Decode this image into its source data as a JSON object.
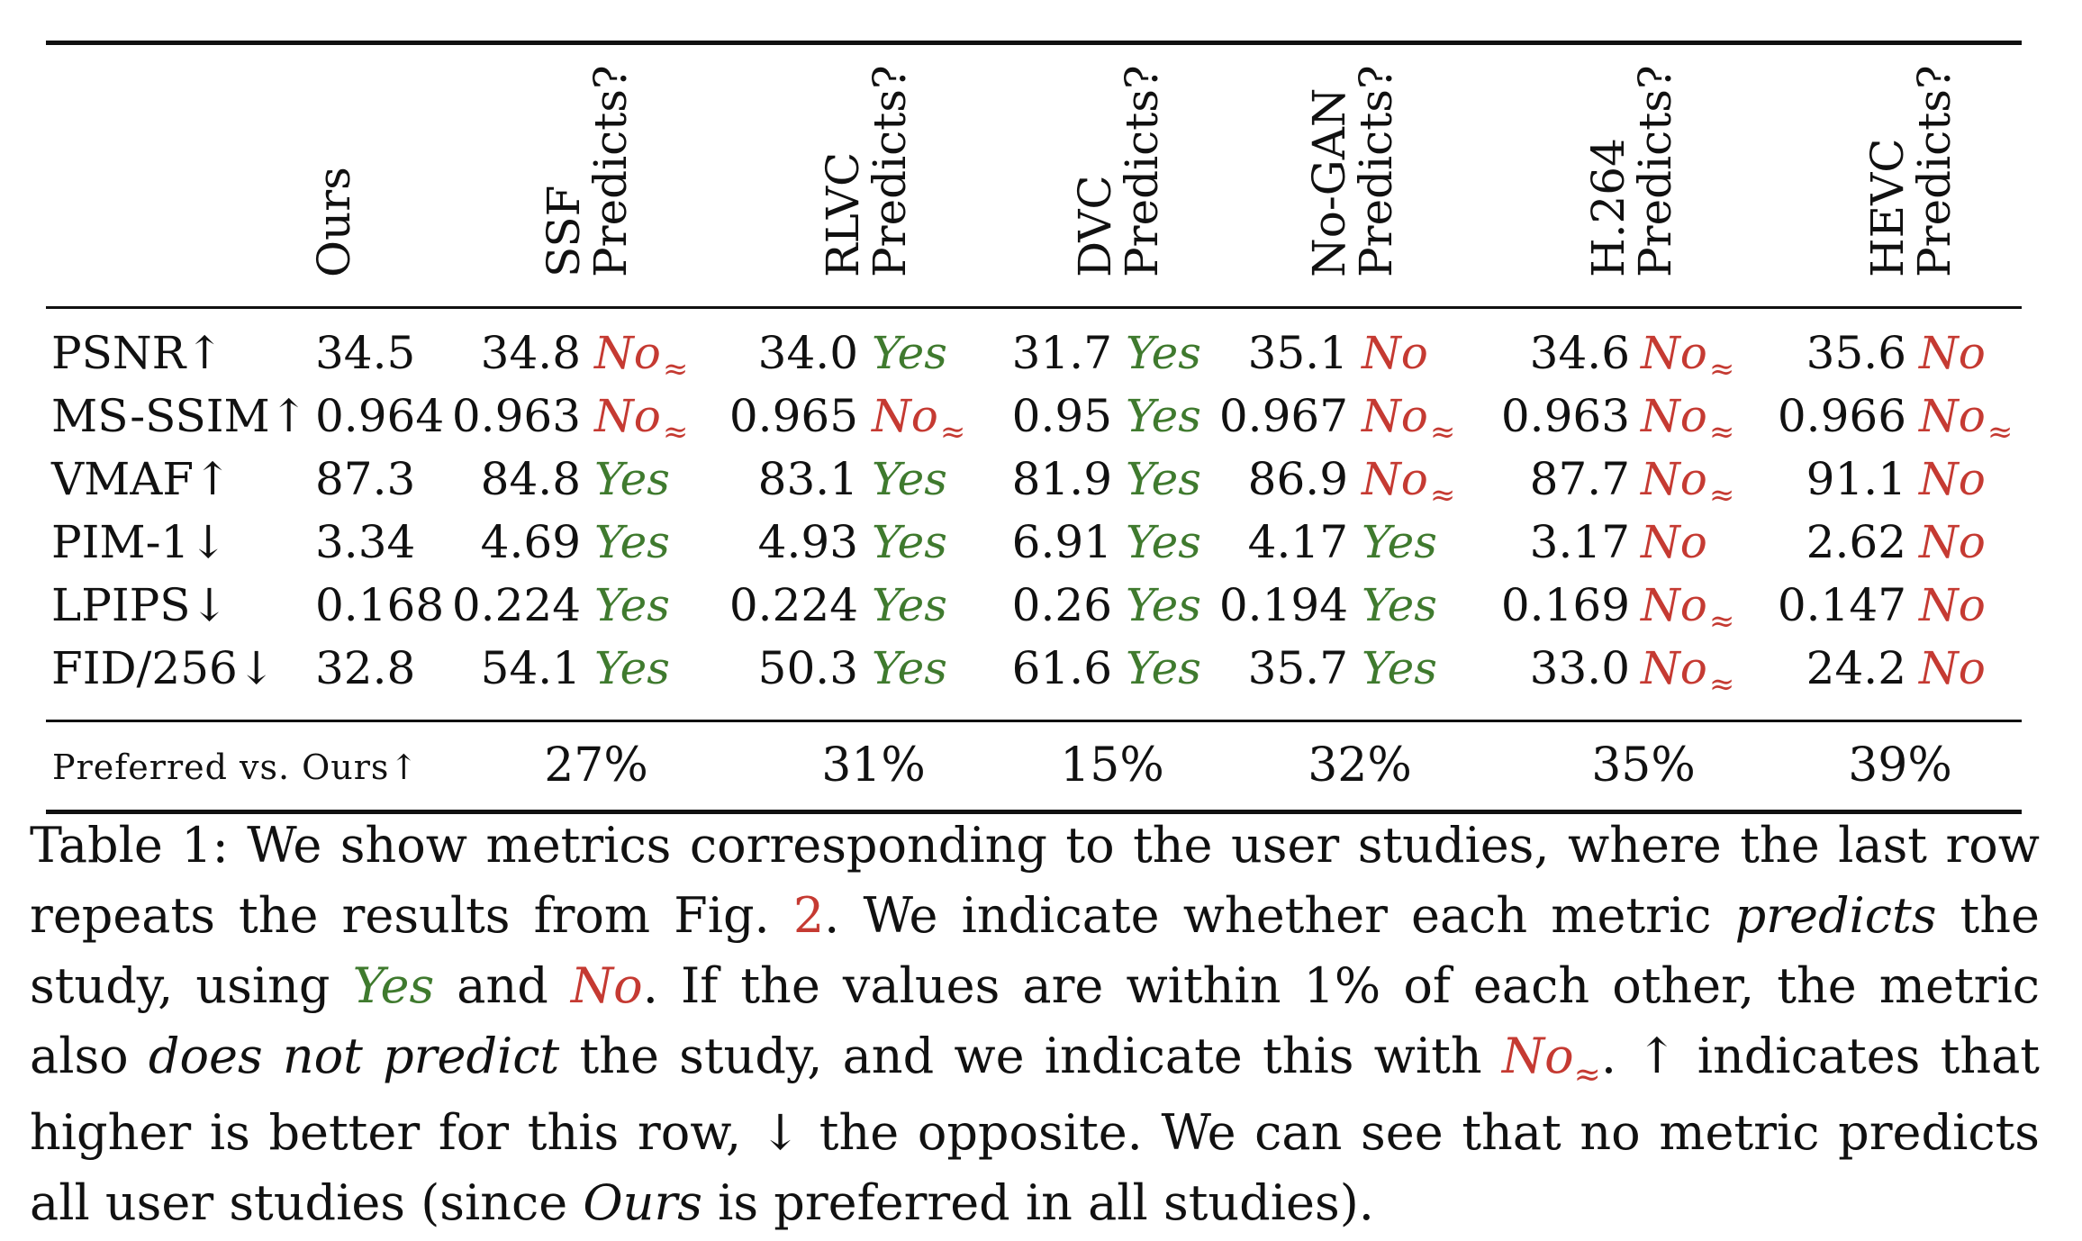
{
  "table": {
    "columns": [
      {
        "line1": "Ours",
        "line2": ""
      },
      {
        "line1": "SSF",
        "line2": "Predicts?"
      },
      {
        "line1": "RLVC",
        "line2": "Predicts?"
      },
      {
        "line1": "DVC",
        "line2": "Predicts?"
      },
      {
        "line1": "No-GAN",
        "line2": "Predicts?"
      },
      {
        "line1": "H.264",
        "line2": "Predicts?"
      },
      {
        "line1": "HEVC",
        "line2": "Predicts?"
      }
    ],
    "rows": [
      {
        "metric": "PSNR↑",
        "ours": "34.5",
        "cells": [
          {
            "value": "34.8",
            "verdict": "No",
            "approx": true
          },
          {
            "value": "34.0",
            "verdict": "Yes",
            "approx": false
          },
          {
            "value": "31.7",
            "verdict": "Yes",
            "approx": false
          },
          {
            "value": "35.1",
            "verdict": "No",
            "approx": false
          },
          {
            "value": "34.6",
            "verdict": "No",
            "approx": true
          },
          {
            "value": "35.6",
            "verdict": "No",
            "approx": false
          }
        ]
      },
      {
        "metric": "MS-SSIM↑",
        "ours": "0.964",
        "cells": [
          {
            "value": "0.963",
            "verdict": "No",
            "approx": true
          },
          {
            "value": "0.965",
            "verdict": "No",
            "approx": true
          },
          {
            "value": "0.95",
            "verdict": "Yes",
            "approx": false
          },
          {
            "value": "0.967",
            "verdict": "No",
            "approx": true
          },
          {
            "value": "0.963",
            "verdict": "No",
            "approx": true
          },
          {
            "value": "0.966",
            "verdict": "No",
            "approx": true
          }
        ]
      },
      {
        "metric": "VMAF↑",
        "ours": "87.3",
        "cells": [
          {
            "value": "84.8",
            "verdict": "Yes",
            "approx": false
          },
          {
            "value": "83.1",
            "verdict": "Yes",
            "approx": false
          },
          {
            "value": "81.9",
            "verdict": "Yes",
            "approx": false
          },
          {
            "value": "86.9",
            "verdict": "No",
            "approx": true
          },
          {
            "value": "87.7",
            "verdict": "No",
            "approx": true
          },
          {
            "value": "91.1",
            "verdict": "No",
            "approx": false
          }
        ]
      },
      {
        "metric": "PIM-1↓",
        "ours": "3.34",
        "cells": [
          {
            "value": "4.69",
            "verdict": "Yes",
            "approx": false
          },
          {
            "value": "4.93",
            "verdict": "Yes",
            "approx": false
          },
          {
            "value": "6.91",
            "verdict": "Yes",
            "approx": false
          },
          {
            "value": "4.17",
            "verdict": "Yes",
            "approx": false
          },
          {
            "value": "3.17",
            "verdict": "No",
            "approx": false
          },
          {
            "value": "2.62",
            "verdict": "No",
            "approx": false
          }
        ]
      },
      {
        "metric": "LPIPS↓",
        "ours": "0.168",
        "cells": [
          {
            "value": "0.224",
            "verdict": "Yes",
            "approx": false
          },
          {
            "value": "0.224",
            "verdict": "Yes",
            "approx": false
          },
          {
            "value": "0.26",
            "verdict": "Yes",
            "approx": false
          },
          {
            "value": "0.194",
            "verdict": "Yes",
            "approx": false
          },
          {
            "value": "0.169",
            "verdict": "No",
            "approx": true
          },
          {
            "value": "0.147",
            "verdict": "No",
            "approx": false
          }
        ]
      },
      {
        "metric": "FID/256↓",
        "ours": "32.8",
        "cells": [
          {
            "value": "54.1",
            "verdict": "Yes",
            "approx": false
          },
          {
            "value": "50.3",
            "verdict": "Yes",
            "approx": false
          },
          {
            "value": "61.6",
            "verdict": "Yes",
            "approx": false
          },
          {
            "value": "35.7",
            "verdict": "Yes",
            "approx": false
          },
          {
            "value": "33.0",
            "verdict": "No",
            "approx": true
          },
          {
            "value": "24.2",
            "verdict": "No",
            "approx": false
          }
        ]
      }
    ],
    "preferred_label": "Preferred vs. Ours↑",
    "preferred": [
      "27%",
      "31%",
      "15%",
      "32%",
      "35%",
      "39%"
    ],
    "approx_symbol": "≈"
  },
  "caption": {
    "l1": {
      "a": "Table 1:  We show metrics corresponding to the user studies, where the last row"
    },
    "l2": {
      "a": "repeats the results from Fig. ",
      "ref": "2",
      "b": ". We indicate whether each metric ",
      "c": "predicts",
      "d": " the"
    },
    "l3": {
      "a": "study, using ",
      "yes": "Yes",
      "b": " and ",
      "no": "No",
      "c": ". If the values are within 1% of each other, the metric"
    },
    "l4": {
      "a": "also ",
      "b": "does not predict",
      "c": " the study, and we indicate this with ",
      "no": "No",
      "sub": "≈",
      "d": ". ↑ indicates that"
    },
    "l5": {
      "a": "higher is better for this row, ↓ the opposite. We can see that no metric predicts"
    },
    "l6": {
      "a": "all user studies (since ",
      "b": "Ours",
      "c": " is preferred in all studies)."
    }
  },
  "colors": {
    "yes": "#3f7a2e",
    "no": "#c53a32"
  }
}
